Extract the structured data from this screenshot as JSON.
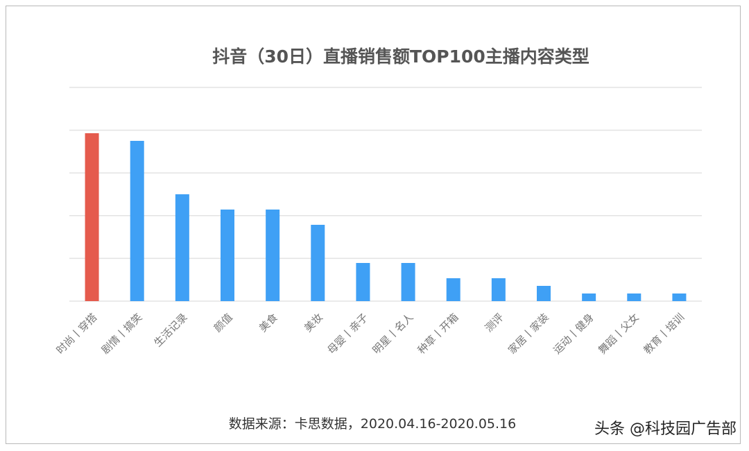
{
  "chart_data": {
    "type": "bar",
    "title": "抖音（30日）直播销售额TOP100主播内容类型",
    "categories": [
      "时尚丨穿搭",
      "剧情丨搞笑",
      "生活记录",
      "颜值",
      "美食",
      "美妆",
      "母婴丨亲子",
      "明星丨名人",
      "种草丨开箱",
      "测评",
      "家居丨家装",
      "运动丨健身",
      "舞蹈丨父女",
      "教育丨培训"
    ],
    "values": [
      22,
      21,
      14,
      12,
      12,
      10,
      5,
      5,
      3,
      3,
      2,
      1,
      1,
      1
    ],
    "colors": [
      "#e55b4d",
      "#3fa0f5",
      "#3fa0f5",
      "#3fa0f5",
      "#3fa0f5",
      "#3fa0f5",
      "#3fa0f5",
      "#3fa0f5",
      "#3fa0f5",
      "#3fa0f5",
      "#3fa0f5",
      "#3fa0f5",
      "#3fa0f5",
      "#3fa0f5"
    ],
    "xlabel": "",
    "ylabel": "",
    "ylim": [
      0,
      28
    ],
    "grid": true,
    "legend": "none",
    "source": "数据来源：卡思数据，2020.04.16-2020.05.16"
  },
  "watermark": "头条 @科技园广告部"
}
